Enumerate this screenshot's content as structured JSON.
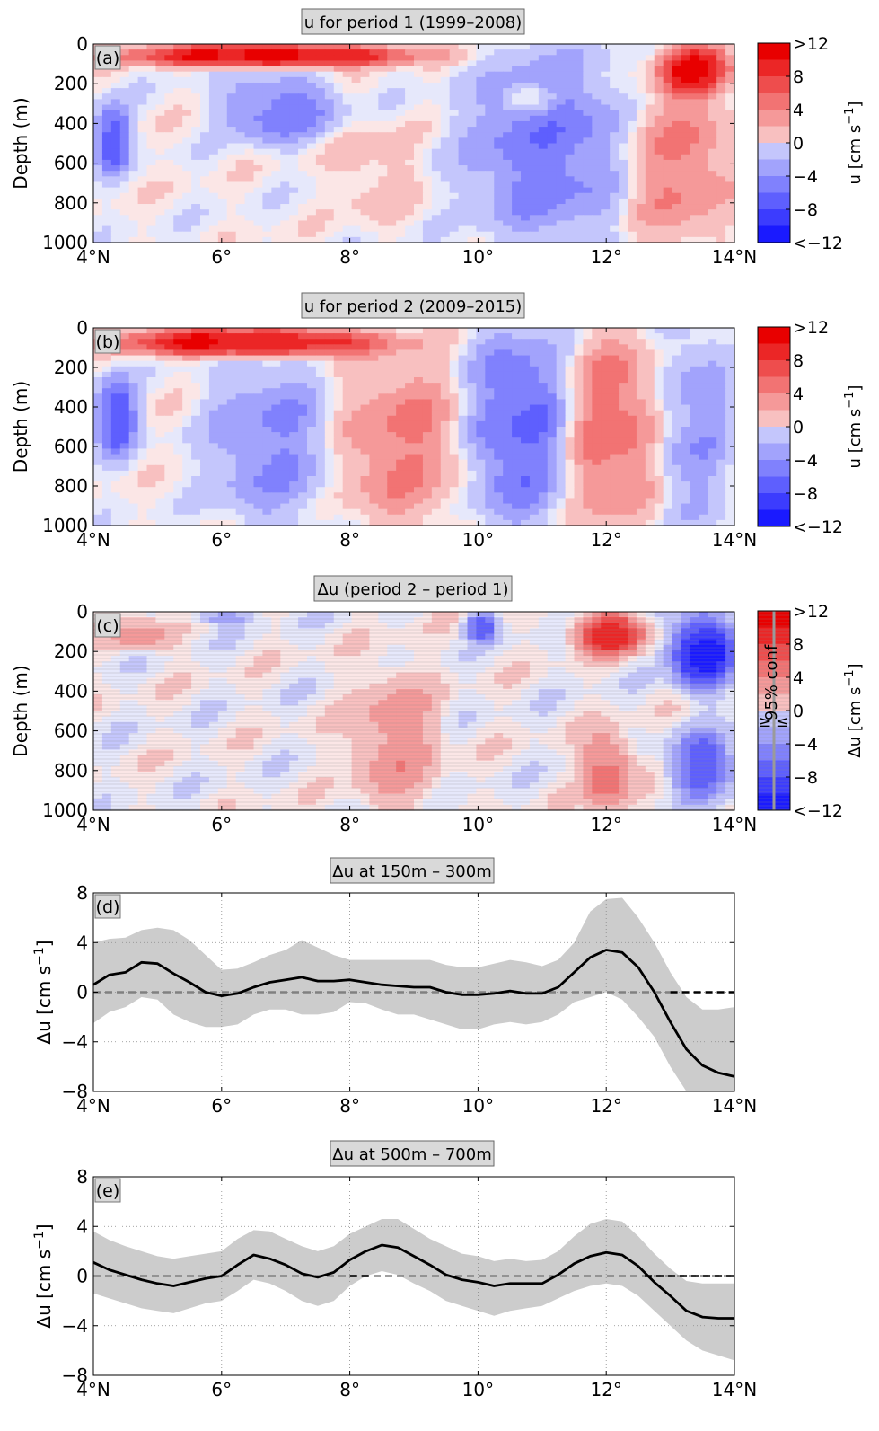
{
  "colors": {
    "east_max": "#e80000",
    "west_max": "#1a1aff",
    "neutral_pos": "#fbe6e6",
    "neutral_neg": "#e6e8fb",
    "band_gray": "#cccccc",
    "title_box_bg": "#d9d9d9",
    "mean_line": "#000000",
    "zero_line": "#808080",
    "sig_contour": "#7a7a7a"
  },
  "colorbar": {
    "tick_labels": [
      ">12",
      "8",
      "4",
      "0",
      "−4",
      "−8",
      "<−12"
    ],
    "tick_values": [
      12,
      8,
      4,
      0,
      -4,
      -8,
      -12
    ],
    "levels": [
      12,
      10,
      8,
      6,
      4,
      2,
      0,
      -2,
      -4,
      -6,
      -8,
      -10,
      -12
    ],
    "label_u": "u [cm s",
    "label_du": "Δu [cm s",
    "label_exp": "−1",
    "label_close": "]",
    "conf_label": "95% conf",
    "conf_geq": "≥",
    "conf_leq": "≤"
  },
  "chart_data": [
    {
      "panel_id": "(a)",
      "type": "heatmap",
      "title": "u for period 1 (1999–2008)",
      "ylabel": "Depth (m)",
      "xlim": [
        4,
        14
      ],
      "ylim": [
        1000,
        0
      ],
      "xticks": [
        4,
        6,
        8,
        10,
        12,
        14
      ],
      "xtick_labels": [
        "4°N",
        "6°",
        "8°",
        "10°",
        "12°",
        "14°N"
      ],
      "yticks": [
        0,
        200,
        400,
        600,
        800,
        1000
      ],
      "ytick_labels": [
        "0",
        "200",
        "400",
        "600",
        "800",
        "1000"
      ],
      "variable": "u [cm s−1]",
      "value_range": [
        -12,
        12
      ],
      "features": [
        {
          "kind": "jet",
          "lat": [
            4.5,
            9.0
          ],
          "depth": [
            0,
            120
          ],
          "max_u": 12
        },
        {
          "kind": "jet",
          "lat": [
            12.8,
            14.0
          ],
          "depth": [
            0,
            260
          ],
          "max_u": 10
        },
        {
          "kind": "eastward",
          "lat": [
            12.2,
            14.0
          ],
          "depth": [
            200,
            1000
          ],
          "max_u": 5
        },
        {
          "kind": "westward",
          "lat": [
            4.0,
            4.6
          ],
          "depth": [
            300,
            650
          ],
          "max_u": -8
        },
        {
          "kind": "westward",
          "lat": [
            6.0,
            7.8
          ],
          "depth": [
            150,
            500
          ],
          "max_u": -6
        },
        {
          "kind": "westward",
          "lat": [
            9.8,
            12.4
          ],
          "depth": [
            50,
            1000
          ],
          "max_u": -6
        },
        {
          "kind": "eastward",
          "lat": [
            7.8,
            9.0
          ],
          "depth": [
            400,
            900
          ],
          "max_u": 2
        },
        {
          "kind": "eastward",
          "lat": [
            10.5,
            11.2
          ],
          "depth": [
            200,
            350
          ],
          "max_u": 4
        }
      ]
    },
    {
      "panel_id": "(b)",
      "type": "heatmap",
      "title": "u for period 2 (2009–2015)",
      "ylabel": "Depth (m)",
      "xlim": [
        4,
        14
      ],
      "ylim": [
        1000,
        0
      ],
      "xticks": [
        4,
        6,
        8,
        10,
        12,
        14
      ],
      "xtick_labels": [
        "4°N",
        "6°",
        "8°",
        "10°",
        "12°",
        "14°N"
      ],
      "yticks": [
        0,
        200,
        400,
        600,
        800,
        1000
      ],
      "ytick_labels": [
        "0",
        "200",
        "400",
        "600",
        "800",
        "1000"
      ],
      "variable": "u [cm s−1]",
      "value_range": [
        -12,
        12
      ],
      "features": [
        {
          "kind": "jet",
          "lat": [
            4.4,
            8.5
          ],
          "depth": [
            0,
            150
          ],
          "max_u": 12
        },
        {
          "kind": "westward",
          "lat": [
            4.0,
            4.7
          ],
          "depth": [
            250,
            650
          ],
          "max_u": -8
        },
        {
          "kind": "westward",
          "lat": [
            5.8,
            7.7
          ],
          "depth": [
            150,
            1000
          ],
          "max_u": -5
        },
        {
          "kind": "eastward",
          "lat": [
            7.8,
            9.8
          ],
          "depth": [
            150,
            1000
          ],
          "max_u": 5
        },
        {
          "kind": "westward",
          "lat": [
            9.8,
            11.4
          ],
          "depth": [
            0,
            1000
          ],
          "max_u": -7
        },
        {
          "kind": "eastward",
          "lat": [
            11.4,
            12.8
          ],
          "depth": [
            30,
            1000
          ],
          "max_u": 6
        },
        {
          "kind": "westward",
          "lat": [
            12.8,
            14.0
          ],
          "depth": [
            0,
            1000
          ],
          "max_u": -4
        }
      ]
    },
    {
      "panel_id": "(c)",
      "type": "heatmap",
      "title": "Δu (period 2 – period 1)",
      "ylabel": "Depth (m)",
      "xlim": [
        4,
        14
      ],
      "ylim": [
        1000,
        0
      ],
      "xticks": [
        4,
        6,
        8,
        10,
        12,
        14
      ],
      "xtick_labels": [
        "4°N",
        "6°",
        "8°",
        "10°",
        "12°",
        "14°N"
      ],
      "yticks": [
        0,
        200,
        400,
        600,
        800,
        1000
      ],
      "ytick_labels": [
        "0",
        "200",
        "400",
        "600",
        "800",
        "1000"
      ],
      "variable": "Δu [cm s−1]",
      "value_range": [
        -12,
        12
      ],
      "hatching": "horizontal lines where not significant at 95%",
      "features": [
        {
          "kind": "positive",
          "lat": [
            11.5,
            12.6
          ],
          "depth": [
            0,
            220
          ],
          "max_du": 10
        },
        {
          "kind": "negative",
          "lat": [
            13.0,
            14.0
          ],
          "depth": [
            0,
            400
          ],
          "max_du": -12
        },
        {
          "kind": "negative",
          "lat": [
            13.0,
            14.0
          ],
          "depth": [
            600,
            950
          ],
          "max_du": -8
        },
        {
          "kind": "negative",
          "lat": [
            9.8,
            10.3
          ],
          "depth": [
            0,
            150
          ],
          "max_du": -8
        },
        {
          "kind": "positive",
          "lat": [
            8.0,
            9.4
          ],
          "depth": [
            300,
            1000
          ],
          "max_du": 4
        },
        {
          "kind": "positive",
          "lat": [
            11.6,
            12.4
          ],
          "depth": [
            600,
            1000
          ],
          "max_du": 6
        },
        {
          "kind": "positive",
          "lat": [
            4.3,
            5.3
          ],
          "depth": [
            50,
            200
          ],
          "max_du": 4
        },
        {
          "kind": "negative",
          "lat": [
            5.5,
            6.5
          ],
          "depth": [
            0,
            60
          ],
          "max_du": -4
        }
      ]
    },
    {
      "panel_id": "(d)",
      "type": "line",
      "title": "Δu at 150m – 300m",
      "ylabel": "Δu [cm s−1]",
      "xlim": [
        4,
        14
      ],
      "ylim": [
        -8,
        8
      ],
      "xticks": [
        4,
        6,
        8,
        10,
        12,
        14
      ],
      "xtick_labels": [
        "4°N",
        "6°",
        "8°",
        "10°",
        "12°",
        "14°N"
      ],
      "yticks": [
        -8,
        -4,
        0,
        4,
        8
      ],
      "ytick_labels": [
        "−8",
        "−4",
        "0",
        "4",
        "8"
      ],
      "grid": true,
      "x": [
        4.0,
        4.25,
        4.5,
        4.75,
        5.0,
        5.25,
        5.5,
        5.75,
        6.0,
        6.25,
        6.5,
        6.75,
        7.0,
        7.25,
        7.5,
        7.75,
        8.0,
        8.25,
        8.5,
        8.75,
        9.0,
        9.25,
        9.5,
        9.75,
        10.0,
        10.25,
        10.5,
        10.75,
        11.0,
        11.25,
        11.5,
        11.75,
        12.0,
        12.25,
        12.5,
        12.75,
        13.0,
        13.25,
        13.5,
        13.75,
        14.0
      ],
      "values": [
        0.6,
        1.4,
        1.6,
        2.4,
        2.3,
        1.5,
        0.8,
        0.0,
        -0.3,
        -0.1,
        0.4,
        0.8,
        1.0,
        1.2,
        0.9,
        0.9,
        1.0,
        0.8,
        0.6,
        0.5,
        0.4,
        0.4,
        0.0,
        -0.2,
        -0.2,
        -0.1,
        0.1,
        -0.1,
        -0.1,
        0.4,
        1.6,
        2.8,
        3.4,
        3.2,
        2.0,
        0.0,
        -2.4,
        -4.6,
        -5.9,
        -6.5,
        -6.8
      ],
      "band_upper": [
        4.0,
        4.3,
        4.4,
        5.0,
        5.2,
        5.0,
        4.2,
        3.0,
        1.8,
        1.9,
        2.4,
        3.0,
        3.4,
        4.2,
        3.6,
        3.0,
        2.6,
        2.6,
        2.6,
        2.6,
        2.6,
        2.6,
        2.2,
        2.0,
        2.0,
        2.3,
        2.6,
        2.4,
        2.1,
        2.6,
        4.0,
        6.5,
        7.5,
        7.6,
        6.0,
        4.0,
        1.6,
        -0.4,
        -1.4,
        -1.4,
        -1.2
      ],
      "band_lower": [
        -2.5,
        -1.6,
        -1.2,
        -0.4,
        -0.6,
        -1.8,
        -2.4,
        -2.8,
        -2.8,
        -2.6,
        -1.8,
        -1.4,
        -1.4,
        -1.8,
        -1.8,
        -1.6,
        -0.8,
        -0.9,
        -1.4,
        -1.8,
        -1.8,
        -2.2,
        -2.6,
        -3.0,
        -3.0,
        -2.6,
        -2.4,
        -2.6,
        -2.4,
        -1.8,
        -0.8,
        -0.4,
        0.0,
        -0.6,
        -2.0,
        -3.6,
        -6.0,
        -8.0,
        -8.0,
        -8.0,
        -8.0
      ],
      "zero_line": {
        "gray_dashed": [
          4,
          13
        ],
        "black_dashed": [
          13,
          14
        ]
      }
    },
    {
      "panel_id": "(e)",
      "type": "line",
      "title": "Δu at 500m – 700m",
      "ylabel": "Δu [cm s−1]",
      "xlim": [
        4,
        14
      ],
      "ylim": [
        -8,
        8
      ],
      "xticks": [
        4,
        6,
        8,
        10,
        12,
        14
      ],
      "xtick_labels": [
        "4°N",
        "6°",
        "8°",
        "10°",
        "12°",
        "14°N"
      ],
      "yticks": [
        -8,
        -4,
        0,
        4,
        8
      ],
      "ytick_labels": [
        "−8",
        "−4",
        "0",
        "4",
        "8"
      ],
      "grid": true,
      "x": [
        4.0,
        4.25,
        4.5,
        4.75,
        5.0,
        5.25,
        5.5,
        5.75,
        6.0,
        6.25,
        6.5,
        6.75,
        7.0,
        7.25,
        7.5,
        7.75,
        8.0,
        8.25,
        8.5,
        8.75,
        9.0,
        9.25,
        9.5,
        9.75,
        10.0,
        10.25,
        10.5,
        10.75,
        11.0,
        11.25,
        11.5,
        11.75,
        12.0,
        12.25,
        12.5,
        12.75,
        13.0,
        13.25,
        13.5,
        13.75,
        14.0
      ],
      "values": [
        1.1,
        0.5,
        0.1,
        -0.3,
        -0.6,
        -0.8,
        -0.5,
        -0.2,
        0.0,
        0.9,
        1.7,
        1.4,
        0.9,
        0.2,
        -0.1,
        0.3,
        1.3,
        2.0,
        2.5,
        2.3,
        1.6,
        0.9,
        0.1,
        -0.3,
        -0.5,
        -0.8,
        -0.6,
        -0.6,
        -0.6,
        0.1,
        1.0,
        1.6,
        1.9,
        1.7,
        0.8,
        -0.5,
        -1.6,
        -2.8,
        -3.3,
        -3.4,
        -3.4
      ],
      "band_upper": [
        3.6,
        2.9,
        2.4,
        2.0,
        1.6,
        1.4,
        1.6,
        1.8,
        2.0,
        3.0,
        3.7,
        3.6,
        3.0,
        2.4,
        2.0,
        2.4,
        3.4,
        4.0,
        4.6,
        4.6,
        3.8,
        3.0,
        2.4,
        1.8,
        1.6,
        1.2,
        1.4,
        1.2,
        1.3,
        2.0,
        3.2,
        4.2,
        4.6,
        4.4,
        3.2,
        1.8,
        0.6,
        -0.4,
        -0.6,
        -0.6,
        -0.6
      ],
      "band_lower": [
        -1.4,
        -1.8,
        -2.2,
        -2.6,
        -2.8,
        -3.0,
        -2.6,
        -2.2,
        -2.0,
        -1.2,
        -0.3,
        -0.6,
        -1.2,
        -2.0,
        -2.4,
        -2.0,
        -0.8,
        0.0,
        0.4,
        0.1,
        -0.6,
        -1.2,
        -2.0,
        -2.4,
        -2.8,
        -3.2,
        -2.8,
        -2.6,
        -2.4,
        -1.8,
        -1.2,
        -0.8,
        -0.6,
        -0.8,
        -1.6,
        -2.8,
        -4.0,
        -5.2,
        -6.0,
        -6.4,
        -6.8
      ],
      "zero_line": {
        "gray_dashed": [
          4,
          14
        ],
        "black_dashed": [
          8.0,
          8.3,
          12.6,
          14.0
        ]
      }
    }
  ]
}
